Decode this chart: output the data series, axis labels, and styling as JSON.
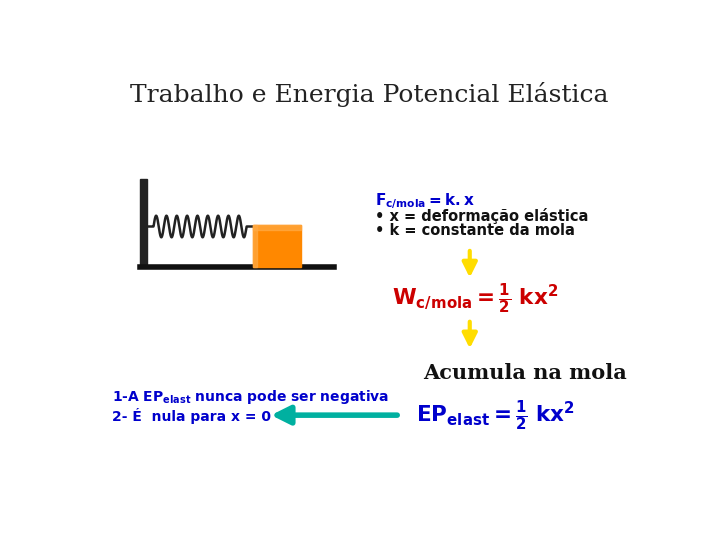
{
  "title": "Trabalho e Energia Potencial Elástica",
  "title_color": "#222222",
  "title_fontsize": 18,
  "bg_color": "#ffffff",
  "bullet1": "• x = deformação elástica",
  "bullet2": "• k = constante da mola",
  "text_acumula": "Acumula na mola",
  "left_text2": "2- É  nula para x = 0",
  "formula_blue": "#0000cc",
  "red_color": "#cc0000",
  "blue_color": "#0000cc",
  "yellow_color": "#ffdd00",
  "teal_color": "#00b0a0",
  "black_color": "#111111",
  "spring_color": "#222222",
  "wall_color": "#222222",
  "block_color_main": "#ff8800",
  "block_color_light": "#ffaa44",
  "floor_color": "#111111"
}
